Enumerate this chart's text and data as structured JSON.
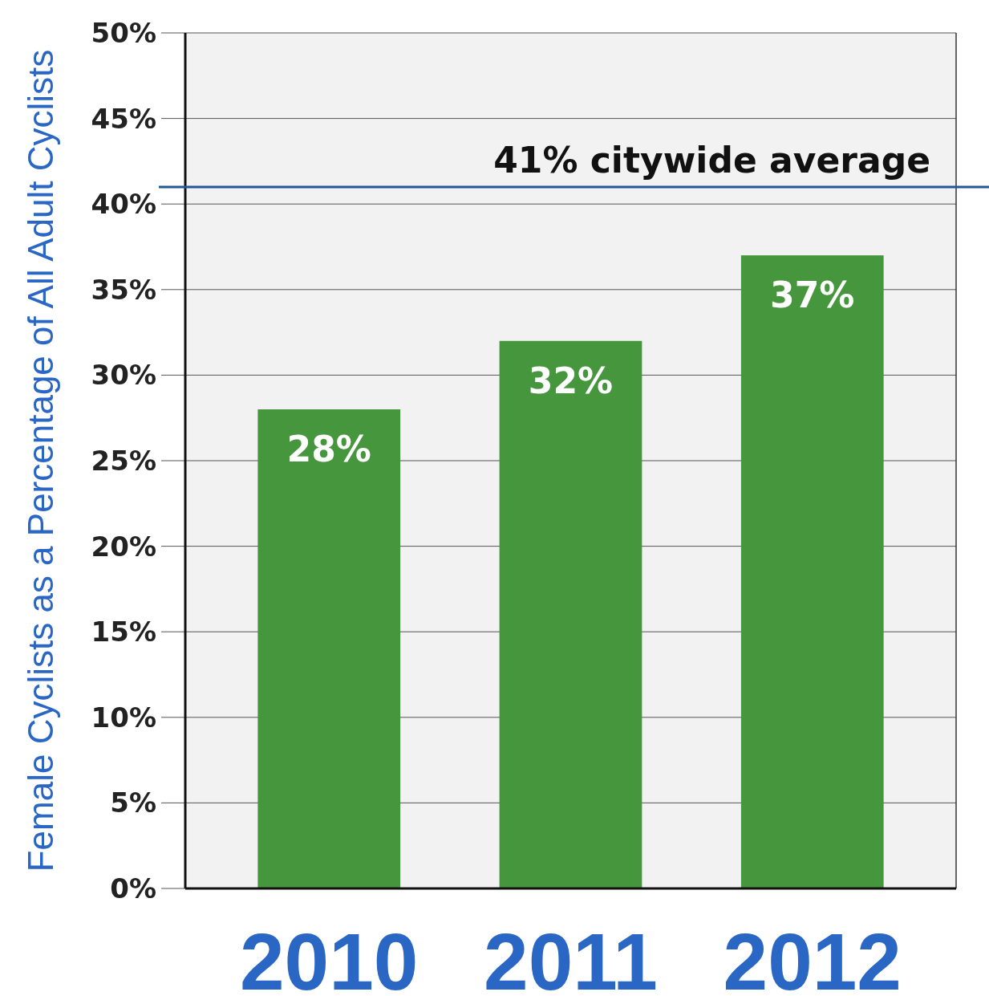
{
  "chart_data": {
    "type": "bar",
    "ylabel": "Female Cyclists as a Percentage of All Adult Cyclists",
    "categories": [
      "2010",
      "2011",
      "2012"
    ],
    "values": [
      28,
      32,
      37
    ],
    "color": "#45963c",
    "value_labels": [
      "28%",
      "32%",
      "37%"
    ],
    "ylim": [
      0,
      50
    ],
    "yticks": [
      {
        "value": 0,
        "label": "0%"
      },
      {
        "value": 5,
        "label": "5%"
      },
      {
        "value": 10,
        "label": "10%"
      },
      {
        "value": 15,
        "label": "15%"
      },
      {
        "value": 20,
        "label": "20%"
      },
      {
        "value": 25,
        "label": "25%"
      },
      {
        "value": 30,
        "label": "30%"
      },
      {
        "value": 35,
        "label": "35%"
      },
      {
        "value": 40,
        "label": "40%"
      },
      {
        "value": 45,
        "label": "45%"
      },
      {
        "value": 50,
        "label": "50%"
      }
    ],
    "grid": "y",
    "ref_lines": [
      {
        "axis": "y",
        "value": 41,
        "label": "41% citywide average",
        "color": "#1f5a96"
      }
    ]
  }
}
